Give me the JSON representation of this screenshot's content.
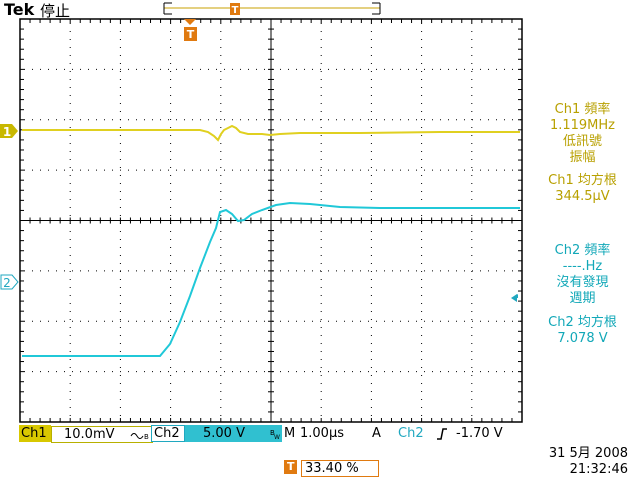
{
  "header": {
    "brand": "Tek",
    "acquisition_state": "停止"
  },
  "trigger_marker": {
    "label": "T",
    "position_label": "T"
  },
  "channel_markers": {
    "ch1": "1",
    "ch2": "2"
  },
  "measurements": {
    "ch1_freq_title": "Ch1 頻率",
    "ch1_freq_value": "1.119MHz",
    "ch1_freq_note1": "低訊號",
    "ch1_freq_note2": "振幅",
    "ch1_rms_title": "Ch1 均方根",
    "ch1_rms_value": "344.5µV",
    "ch2_freq_title": "Ch2 頻率",
    "ch2_freq_value": "----.Hz",
    "ch2_freq_note1": "沒有發現",
    "ch2_freq_note2": "週期",
    "ch2_rms_title": "Ch2 均方根",
    "ch2_rms_value": "7.078 V"
  },
  "status_bar": {
    "ch1_label": "Ch1",
    "ch1_scale": "10.0mV",
    "ch1_coupling_icon": "ac-coupling-icon",
    "ch2_label": "Ch2",
    "ch2_scale": "5.00 V",
    "ch2_bw_icon": "bandwidth-limit-icon",
    "timebase_label": "M",
    "timebase_value": "1.00µs",
    "trigger_mode": "A",
    "trigger_source": "Ch2",
    "trigger_slope_icon": "rising-edge-icon",
    "trigger_level": "-1.70 V"
  },
  "trigger_position": {
    "icon_label": "T",
    "value": "33.40 %"
  },
  "datetime": {
    "date": "31 5月  2008",
    "time": "21:32:46"
  },
  "colors": {
    "ch1": "#e0d020",
    "ch2": "#20c8d8",
    "trigger": "#e07a10",
    "grid": "#000000"
  }
}
